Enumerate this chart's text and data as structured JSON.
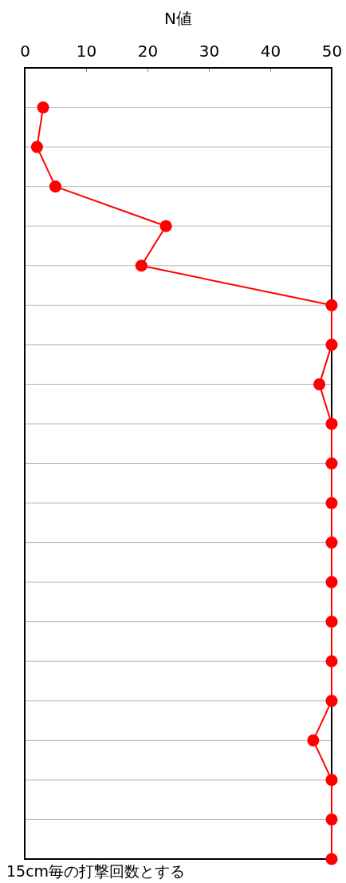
{
  "chart_data": {
    "type": "line",
    "orientation": "horizontal",
    "xlabel": "N値",
    "categories": [
      null,
      null,
      null,
      null,
      null,
      null,
      null,
      null,
      null,
      null,
      null,
      null,
      null,
      null,
      null,
      null,
      null,
      null,
      null,
      null
    ],
    "series": [
      {
        "color": "#ff0000",
        "values": [
          3,
          2,
          5,
          23,
          19,
          50,
          50,
          48,
          50,
          50,
          50,
          50,
          50,
          50,
          50,
          50,
          47,
          50,
          50,
          50
        ]
      }
    ],
    "xlim": [
      0,
      50
    ],
    "xticks": [
      0,
      10,
      20,
      30,
      40,
      50
    ],
    "grid": "y",
    "tick_labels": "x",
    "marker": "circle",
    "line_style": "solid",
    "annotations": [
      "15cm毎の打撃回数とする"
    ]
  }
}
